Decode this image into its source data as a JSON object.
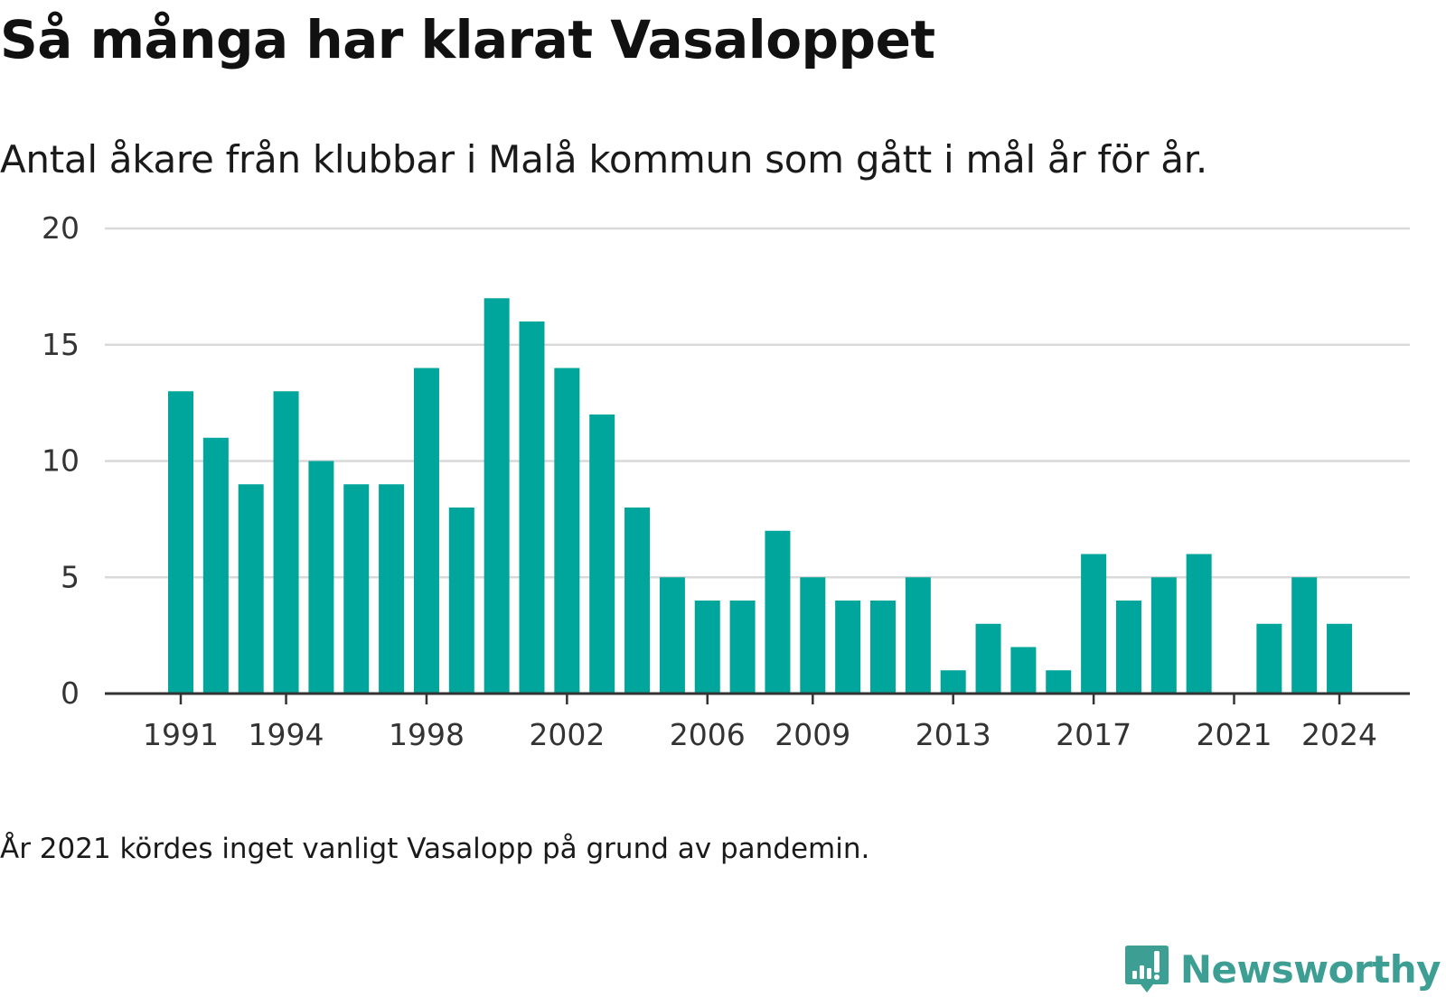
{
  "title": "Så många har klarat Vasaloppet",
  "subtitle": "Antal åkare från klubbar i Malå kommun som gått i mål år för år.",
  "note": "År 2021 kördes inget vanligt Vasalopp på grund av pandemin.",
  "brand": {
    "name": "Newsworthy",
    "icon": "newsworthy-logo-icon"
  },
  "colors": {
    "bar": "#00A59B",
    "grid": "#D9D9D9",
    "axis": "#333333",
    "brand": "#3D9E94"
  },
  "chart_data": {
    "type": "bar",
    "categories": [
      1991,
      1992,
      1993,
      1994,
      1995,
      1996,
      1997,
      1998,
      1999,
      2000,
      2001,
      2002,
      2003,
      2004,
      2005,
      2006,
      2007,
      2008,
      2009,
      2010,
      2011,
      2012,
      2013,
      2014,
      2015,
      2016,
      2017,
      2018,
      2019,
      2020,
      2021,
      2022,
      2023,
      2024
    ],
    "values": [
      13,
      11,
      9,
      13,
      10,
      9,
      9,
      14,
      8,
      17,
      16,
      14,
      12,
      8,
      5,
      4,
      4,
      7,
      5,
      4,
      4,
      5,
      1,
      3,
      2,
      1,
      6,
      4,
      5,
      6,
      null,
      3,
      5,
      3
    ],
    "x_tick_labels": [
      "1991",
      "1994",
      "1998",
      "2002",
      "2006",
      "2009",
      "2013",
      "2017",
      "2021",
      "2024"
    ],
    "y_ticks": [
      0,
      5,
      10,
      15,
      20
    ],
    "ylim": [
      0,
      20
    ],
    "grid": true,
    "legend": "none"
  }
}
